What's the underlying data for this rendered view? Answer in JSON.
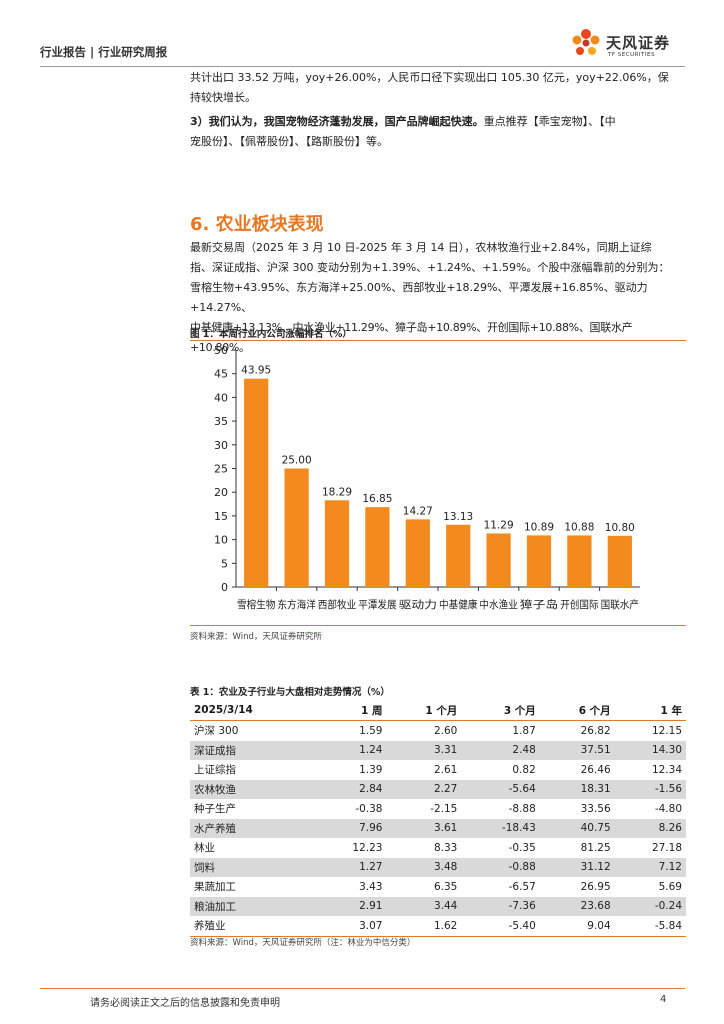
{
  "header": {
    "title": "行业报告 | 行业研究周报",
    "logo_cn": "天风证券",
    "logo_en": "TF SECURITIES"
  },
  "intro": {
    "line1": "共计出口 33.52 万吨，yoy+26.00%，人民币口径下实现出口 105.30 亿元，yoy+22.06%，保",
    "line2": "持较快增长。",
    "point3_label": "3）我们认为，我国宠物经济蓬勃发展，国产品牌崛起快速。",
    "point3_rest": "重点推荐【乖宝宠物】、【中",
    "point3_line2": "宠股份】、【佩蒂股份】、【路斯股份】等。"
  },
  "section": {
    "title": "6. 农业板块表现",
    "lines": [
      "最新交易周（2025 年 3 月 10 日-2025 年 3 月 14 日），农林牧渔行业+2.84%，同期上证综",
      "指、深证成指、沪深 300 变动分别为+1.39%、+1.24%、+1.59%。个股中涨幅靠前的分别为：",
      "雪榕生物+43.95%、东方海洋+25.00%、西部牧业+18.29%、平潭发展+16.85%、驱动力+14.27%、",
      "中基健康+13.13%、中水渔业+11.29%、獐子岛+10.89%、开创国际+10.88%、国联水产+10.80%。"
    ]
  },
  "figure": {
    "title": "图 1：本周行业内公司涨幅排名（%）",
    "source": "资料来源：Wind，天风证券研究所"
  },
  "chart_data": {
    "type": "bar",
    "title": "本周行业内公司涨幅排名（%）",
    "categories": [
      "雪榕生物",
      "东方海洋",
      "西部牧业",
      "平潭发展",
      "驱动力",
      "中基健康",
      "中水渔业",
      "獐子岛",
      "开创国际",
      "国联水产"
    ],
    "values": [
      43.95,
      25.0,
      18.29,
      16.85,
      14.27,
      13.13,
      11.29,
      10.89,
      10.88,
      10.8
    ],
    "value_labels": [
      "43.95",
      "25.00",
      "18.29",
      "16.85",
      "14.27",
      "13.13",
      "11.29",
      "10.89",
      "10.88",
      "10.80"
    ],
    "ylim": [
      0,
      50
    ],
    "yticks": [
      0,
      5,
      10,
      15,
      20,
      25,
      30,
      35,
      40,
      45,
      50
    ],
    "bar_color": "#F28A1E",
    "xlabel": "",
    "ylabel": ""
  },
  "table": {
    "title": "表 1：农业及子行业与大盘相对走势情况（%）",
    "headers": [
      "2025/3/14",
      "1 周",
      "1 个月",
      "3 个月",
      "6 个月",
      "1 年"
    ],
    "rows": [
      [
        "沪深 300",
        "1.59",
        "2.60",
        "1.87",
        "26.82",
        "12.15"
      ],
      [
        "深证成指",
        "1.24",
        "3.31",
        "2.48",
        "37.51",
        "14.30"
      ],
      [
        "上证综指",
        "1.39",
        "2.61",
        "0.82",
        "26.46",
        "12.34"
      ],
      [
        "农林牧渔",
        "2.84",
        "2.27",
        "-5.64",
        "18.31",
        "-1.56"
      ],
      [
        "种子生产",
        "-0.38",
        "-2.15",
        "-8.88",
        "33.56",
        "-4.80"
      ],
      [
        "水产养殖",
        "7.96",
        "3.61",
        "-18.43",
        "40.75",
        "8.26"
      ],
      [
        "林业",
        "12.23",
        "8.33",
        "-0.35",
        "81.25",
        "27.18"
      ],
      [
        "饲料",
        "1.27",
        "3.48",
        "-0.88",
        "31.12",
        "7.12"
      ],
      [
        "果蔬加工",
        "3.43",
        "6.35",
        "-6.57",
        "26.95",
        "5.69"
      ],
      [
        "粮油加工",
        "2.91",
        "3.44",
        "-7.36",
        "23.68",
        "-0.24"
      ],
      [
        "养殖业",
        "3.07",
        "1.62",
        "-5.40",
        "9.04",
        "-5.84"
      ]
    ],
    "source": "资料来源：Wind，天风证券研究所（注：林业为中信分类）"
  },
  "footer": {
    "text": "请务必阅读正文之后的信息披露和免责申明",
    "page": "4"
  },
  "colors": {
    "accent": "#E87722",
    "row_shade": "#D9D9D9"
  }
}
